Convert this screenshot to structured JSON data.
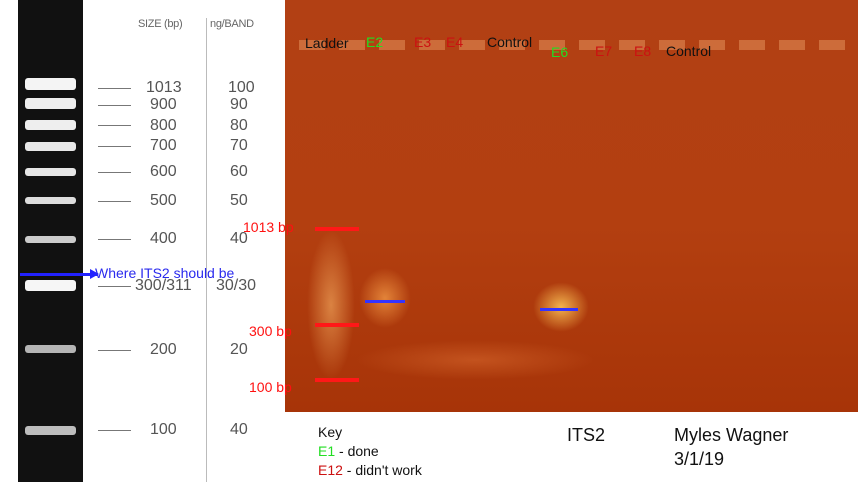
{
  "ladder_panel": {
    "header_size": "SIZE (bp)",
    "header_ng": "ng/BAND",
    "rows": [
      {
        "size": "1013",
        "ng": "100"
      },
      {
        "size": "900",
        "ng": "90"
      },
      {
        "size": "800",
        "ng": "80"
      },
      {
        "size": "700",
        "ng": "70"
      },
      {
        "size": "600",
        "ng": "60"
      },
      {
        "size": "500",
        "ng": "50"
      },
      {
        "size": "400",
        "ng": "40"
      },
      {
        "size": "300/311",
        "ng": "30/30"
      },
      {
        "size": "200",
        "ng": "20"
      },
      {
        "size": "100",
        "ng": "40"
      }
    ]
  },
  "annotation": {
    "its2_label": "Where ITS2 should be",
    "line_color": "#2222ff"
  },
  "gel": {
    "lanes_row1": [
      "Ladder",
      "E2",
      "E3",
      "E4",
      "Control"
    ],
    "lanes_row2": [
      "E6",
      "E7",
      "E8",
      "Control"
    ],
    "markers": [
      "1013 bp",
      "300 bp",
      "100 bp"
    ]
  },
  "key": {
    "title": "Key",
    "done_code": "E1",
    "done_text": " - done",
    "fail_code": "E12",
    "fail_text": " - didn't work"
  },
  "footer": {
    "gene": "ITS2",
    "author": "Myles Wagner",
    "date": "3/1/19"
  },
  "colors": {
    "done": "#22dd22",
    "failed": "#cc1111",
    "marker": "#ff1818",
    "gel": "#b33f10"
  }
}
